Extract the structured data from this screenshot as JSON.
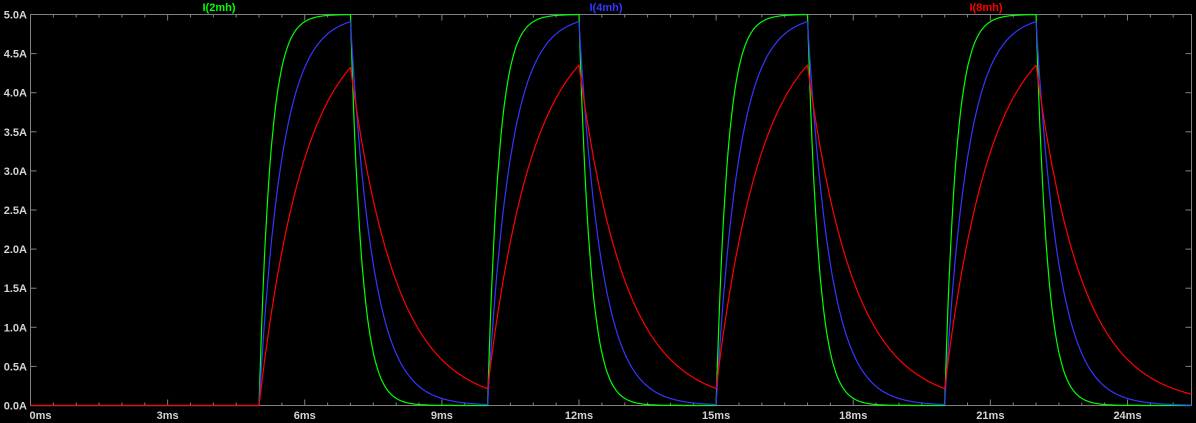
{
  "window": {
    "background": "#000000",
    "frame_color": "#808080",
    "text_color": "#d4d4d4"
  },
  "chart_data": {
    "type": "line",
    "title": "",
    "background": "#000000",
    "grid": false,
    "legend_position": "top-inside",
    "x_axis": {
      "unit": "ms",
      "min_ms": 0,
      "max_ms": 25.4,
      "major_tick_ms": 3,
      "minor_tick_ms": 0.5,
      "tick_values_ms": [
        0,
        3,
        6,
        9,
        12,
        15,
        18,
        21,
        24
      ],
      "tick_labels": [
        "0ms",
        "3ms",
        "6ms",
        "9ms",
        "12ms",
        "15ms",
        "18ms",
        "21ms",
        "24ms"
      ]
    },
    "y_axis": {
      "unit": "A",
      "min_a": 0.0,
      "max_a": 5.0,
      "tick_interval_a": 0.5,
      "tick_values_a": [
        5.0,
        4.5,
        4.0,
        3.5,
        3.0,
        2.5,
        2.0,
        1.5,
        1.0,
        0.5,
        0.0
      ],
      "tick_labels": [
        "5.0A",
        "4.5A",
        "4.0A",
        "3.5A",
        "3.0A",
        "2.5A",
        "2.0A",
        "1.5A",
        "1.0A",
        "0.5A",
        "0.0A"
      ]
    },
    "drive_pulse": {
      "amplitude_a": 5.0,
      "delay_ms": 5.0,
      "on_time_ms": 2.0,
      "period_ms": 5.0,
      "cycles": 4,
      "rise_start_times_ms": [
        5,
        10,
        15,
        20
      ],
      "fall_start_times_ms": [
        7,
        12,
        17,
        22
      ]
    },
    "series": [
      {
        "name": "I(2mh)",
        "color": "#00ff00",
        "tau_ms": 0.25,
        "peak_a": 5.0,
        "value_at_0ms_a": 0.0
      },
      {
        "name": "I(4mh)",
        "color": "#3535ff",
        "tau_ms": 0.5,
        "peak_a": 4.91,
        "value_at_0ms_a": 0.0
      },
      {
        "name": "I(8mh)",
        "color": "#ff0000",
        "tau_ms": 1.0,
        "peak_a": 4.32,
        "value_at_0ms_a": 0.0
      }
    ]
  }
}
